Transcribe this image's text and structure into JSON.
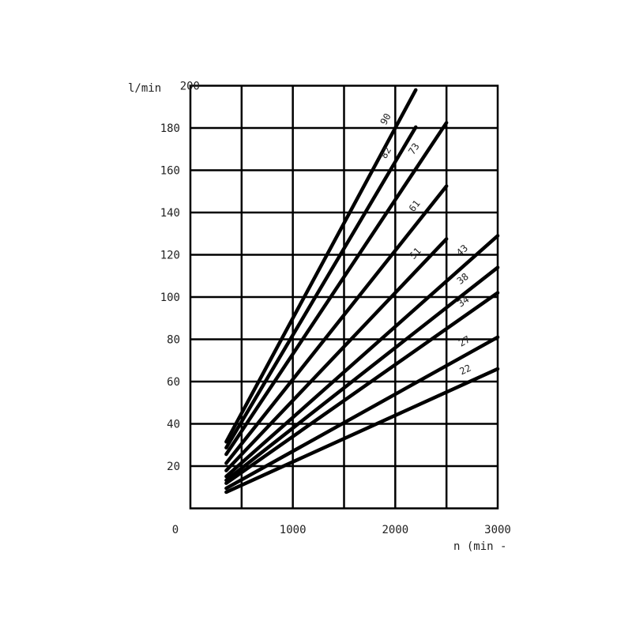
{
  "chart_data": {
    "type": "line",
    "title": "",
    "xlabel": "n (min -",
    "ylabel": "l/min",
    "xlim": [
      0,
      3000
    ],
    "ylim": [
      0,
      200
    ],
    "grid": true,
    "x_ticks": [
      0,
      1000,
      2000,
      3000
    ],
    "x_tick_labels": [
      "0",
      "1000",
      "2000",
      "3000"
    ],
    "y_ticks": [
      20,
      40,
      60,
      80,
      100,
      120,
      140,
      160,
      180,
      200
    ],
    "y_tick_labels": [
      "20",
      "40",
      "60",
      "80",
      "100",
      "120",
      "140",
      "160",
      "180",
      "200"
    ],
    "series": [
      {
        "name": "22",
        "x": [
          350,
          3000
        ],
        "y": [
          7.7,
          66
        ]
      },
      {
        "name": "27",
        "x": [
          350,
          3000
        ],
        "y": [
          9.5,
          81
        ]
      },
      {
        "name": "34",
        "x": [
          350,
          3000
        ],
        "y": [
          11.9,
          102
        ]
      },
      {
        "name": "38",
        "x": [
          350,
          3000
        ],
        "y": [
          13.3,
          114
        ]
      },
      {
        "name": "43",
        "x": [
          350,
          3000
        ],
        "y": [
          15.1,
          129
        ]
      },
      {
        "name": "51",
        "x": [
          350,
          2500
        ],
        "y": [
          17.9,
          127.5
        ]
      },
      {
        "name": "61",
        "x": [
          350,
          2500
        ],
        "y": [
          21.4,
          152.5
        ]
      },
      {
        "name": "73",
        "x": [
          350,
          2500
        ],
        "y": [
          25.6,
          182.5
        ]
      },
      {
        "name": "82",
        "x": [
          350,
          2200
        ],
        "y": [
          28.7,
          180.4
        ]
      },
      {
        "name": "90",
        "x": [
          350,
          2200
        ],
        "y": [
          31.5,
          198
        ]
      }
    ]
  }
}
